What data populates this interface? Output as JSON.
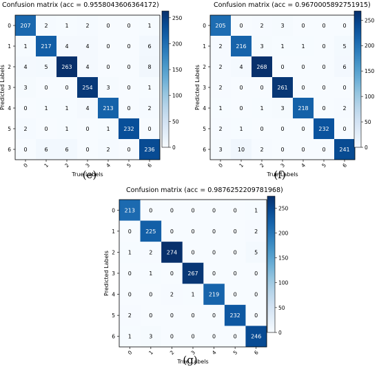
{
  "chart_data": [
    {
      "type": "heatmap",
      "title": "Confusion matrix (acc = 0.9558043606364172)",
      "xlabel": "True Labels",
      "ylabel": "Predicted Labels",
      "x_ticks": [
        "0",
        "1",
        "2",
        "3",
        "4",
        "5",
        "6"
      ],
      "y_ticks": [
        "0",
        "1",
        "2",
        "3",
        "4",
        "5",
        "6"
      ],
      "matrix": [
        [
          207,
          2,
          1,
          2,
          0,
          0,
          1
        ],
        [
          1,
          217,
          4,
          4,
          0,
          0,
          6
        ],
        [
          4,
          5,
          263,
          4,
          0,
          0,
          8
        ],
        [
          3,
          0,
          0,
          254,
          3,
          0,
          1
        ],
        [
          0,
          1,
          1,
          4,
          213,
          0,
          2
        ],
        [
          2,
          0,
          1,
          0,
          1,
          232,
          0
        ],
        [
          0,
          6,
          6,
          0,
          2,
          0,
          236
        ]
      ],
      "colorbar_ticks": [
        0,
        50,
        100,
        150,
        200,
        250
      ],
      "vmin": 0,
      "vmax": 263,
      "colormap": "Blues",
      "panel_label": "(e)"
    },
    {
      "type": "heatmap",
      "title": "Confusion matrix (acc = 0.9670005892751915)",
      "xlabel": "True Labels",
      "ylabel": "Predicted Labels",
      "x_ticks": [
        "0",
        "1",
        "2",
        "3",
        "4",
        "5",
        "6"
      ],
      "y_ticks": [
        "0",
        "1",
        "2",
        "3",
        "4",
        "5",
        "6"
      ],
      "matrix": [
        [
          205,
          0,
          2,
          3,
          0,
          0,
          0
        ],
        [
          2,
          216,
          3,
          1,
          1,
          0,
          5
        ],
        [
          2,
          4,
          268,
          0,
          0,
          0,
          6
        ],
        [
          2,
          0,
          0,
          261,
          0,
          0,
          0
        ],
        [
          1,
          0,
          1,
          3,
          218,
          0,
          2
        ],
        [
          2,
          1,
          0,
          0,
          0,
          232,
          0
        ],
        [
          3,
          10,
          2,
          0,
          0,
          0,
          241
        ]
      ],
      "colorbar_ticks": [
        0,
        50,
        100,
        150,
        200,
        250
      ],
      "vmin": 0,
      "vmax": 268,
      "colormap": "Blues",
      "panel_label": "(f)"
    },
    {
      "type": "heatmap",
      "title": "Confusion matrix (acc = 0.9876252209781968)",
      "xlabel": "True Labels",
      "ylabel": "Predicted Labels",
      "x_ticks": [
        "0",
        "1",
        "2",
        "3",
        "4",
        "5",
        "6"
      ],
      "y_ticks": [
        "0",
        "1",
        "2",
        "3",
        "4",
        "5",
        "6"
      ],
      "matrix": [
        [
          213,
          0,
          0,
          0,
          0,
          0,
          1
        ],
        [
          0,
          225,
          0,
          0,
          0,
          0,
          2
        ],
        [
          1,
          2,
          274,
          0,
          0,
          0,
          5
        ],
        [
          0,
          1,
          0,
          267,
          0,
          0,
          0
        ],
        [
          0,
          0,
          2,
          1,
          219,
          0,
          0
        ],
        [
          2,
          0,
          0,
          0,
          0,
          232,
          0
        ],
        [
          1,
          3,
          0,
          0,
          0,
          0,
          246
        ]
      ],
      "colorbar_ticks": [
        0,
        50,
        100,
        150,
        200,
        250
      ],
      "vmin": 0,
      "vmax": 274,
      "colormap": "Blues",
      "panel_label": "(g)"
    }
  ]
}
